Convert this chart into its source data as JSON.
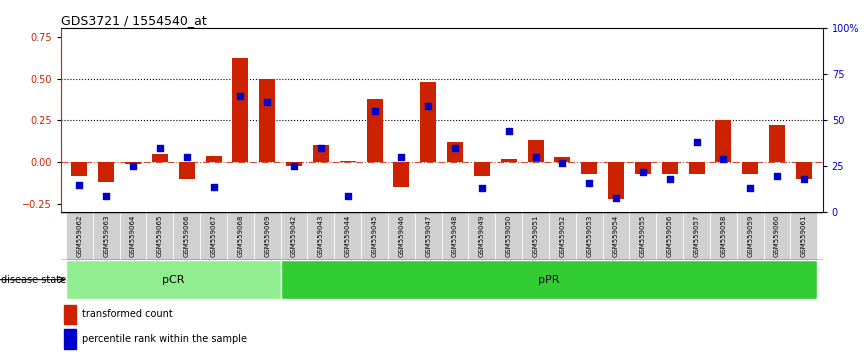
{
  "title": "GDS3721 / 1554540_at",
  "samples": [
    "GSM559062",
    "GSM559063",
    "GSM559064",
    "GSM559065",
    "GSM559066",
    "GSM559067",
    "GSM559068",
    "GSM559069",
    "GSM559042",
    "GSM559043",
    "GSM559044",
    "GSM559045",
    "GSM559046",
    "GSM559047",
    "GSM559048",
    "GSM559049",
    "GSM559050",
    "GSM559051",
    "GSM559052",
    "GSM559053",
    "GSM559054",
    "GSM559055",
    "GSM559056",
    "GSM559057",
    "GSM559058",
    "GSM559059",
    "GSM559060",
    "GSM559061"
  ],
  "transformed_count": [
    -0.08,
    -0.12,
    -0.01,
    0.05,
    -0.1,
    0.04,
    0.62,
    0.5,
    -0.02,
    0.1,
    0.01,
    0.38,
    -0.15,
    0.48,
    0.12,
    -0.08,
    0.02,
    0.13,
    0.03,
    -0.07,
    -0.22,
    -0.07,
    -0.07,
    -0.07,
    0.25,
    -0.07,
    0.22,
    -0.1
  ],
  "percentile_rank": [
    15,
    9,
    25,
    35,
    30,
    14,
    63,
    60,
    25,
    35,
    9,
    55,
    30,
    58,
    35,
    13,
    44,
    30,
    27,
    16,
    8,
    22,
    18,
    38,
    29,
    13,
    20,
    18
  ],
  "pCR_count": 8,
  "pPR_count": 20,
  "ylim_left": [
    -0.3,
    0.8
  ],
  "ylim_right": [
    0,
    100
  ],
  "yticks_left": [
    -0.25,
    0.0,
    0.25,
    0.5,
    0.75
  ],
  "yticks_right": [
    0,
    25,
    50,
    75,
    100
  ],
  "hlines": [
    0.25,
    0.5
  ],
  "bar_color": "#cc2200",
  "dot_color": "#0000cc",
  "pCR_color": "#90ee90",
  "pPR_color": "#32cd32",
  "label_bar": "transformed count",
  "label_dot": "percentile rank within the sample"
}
